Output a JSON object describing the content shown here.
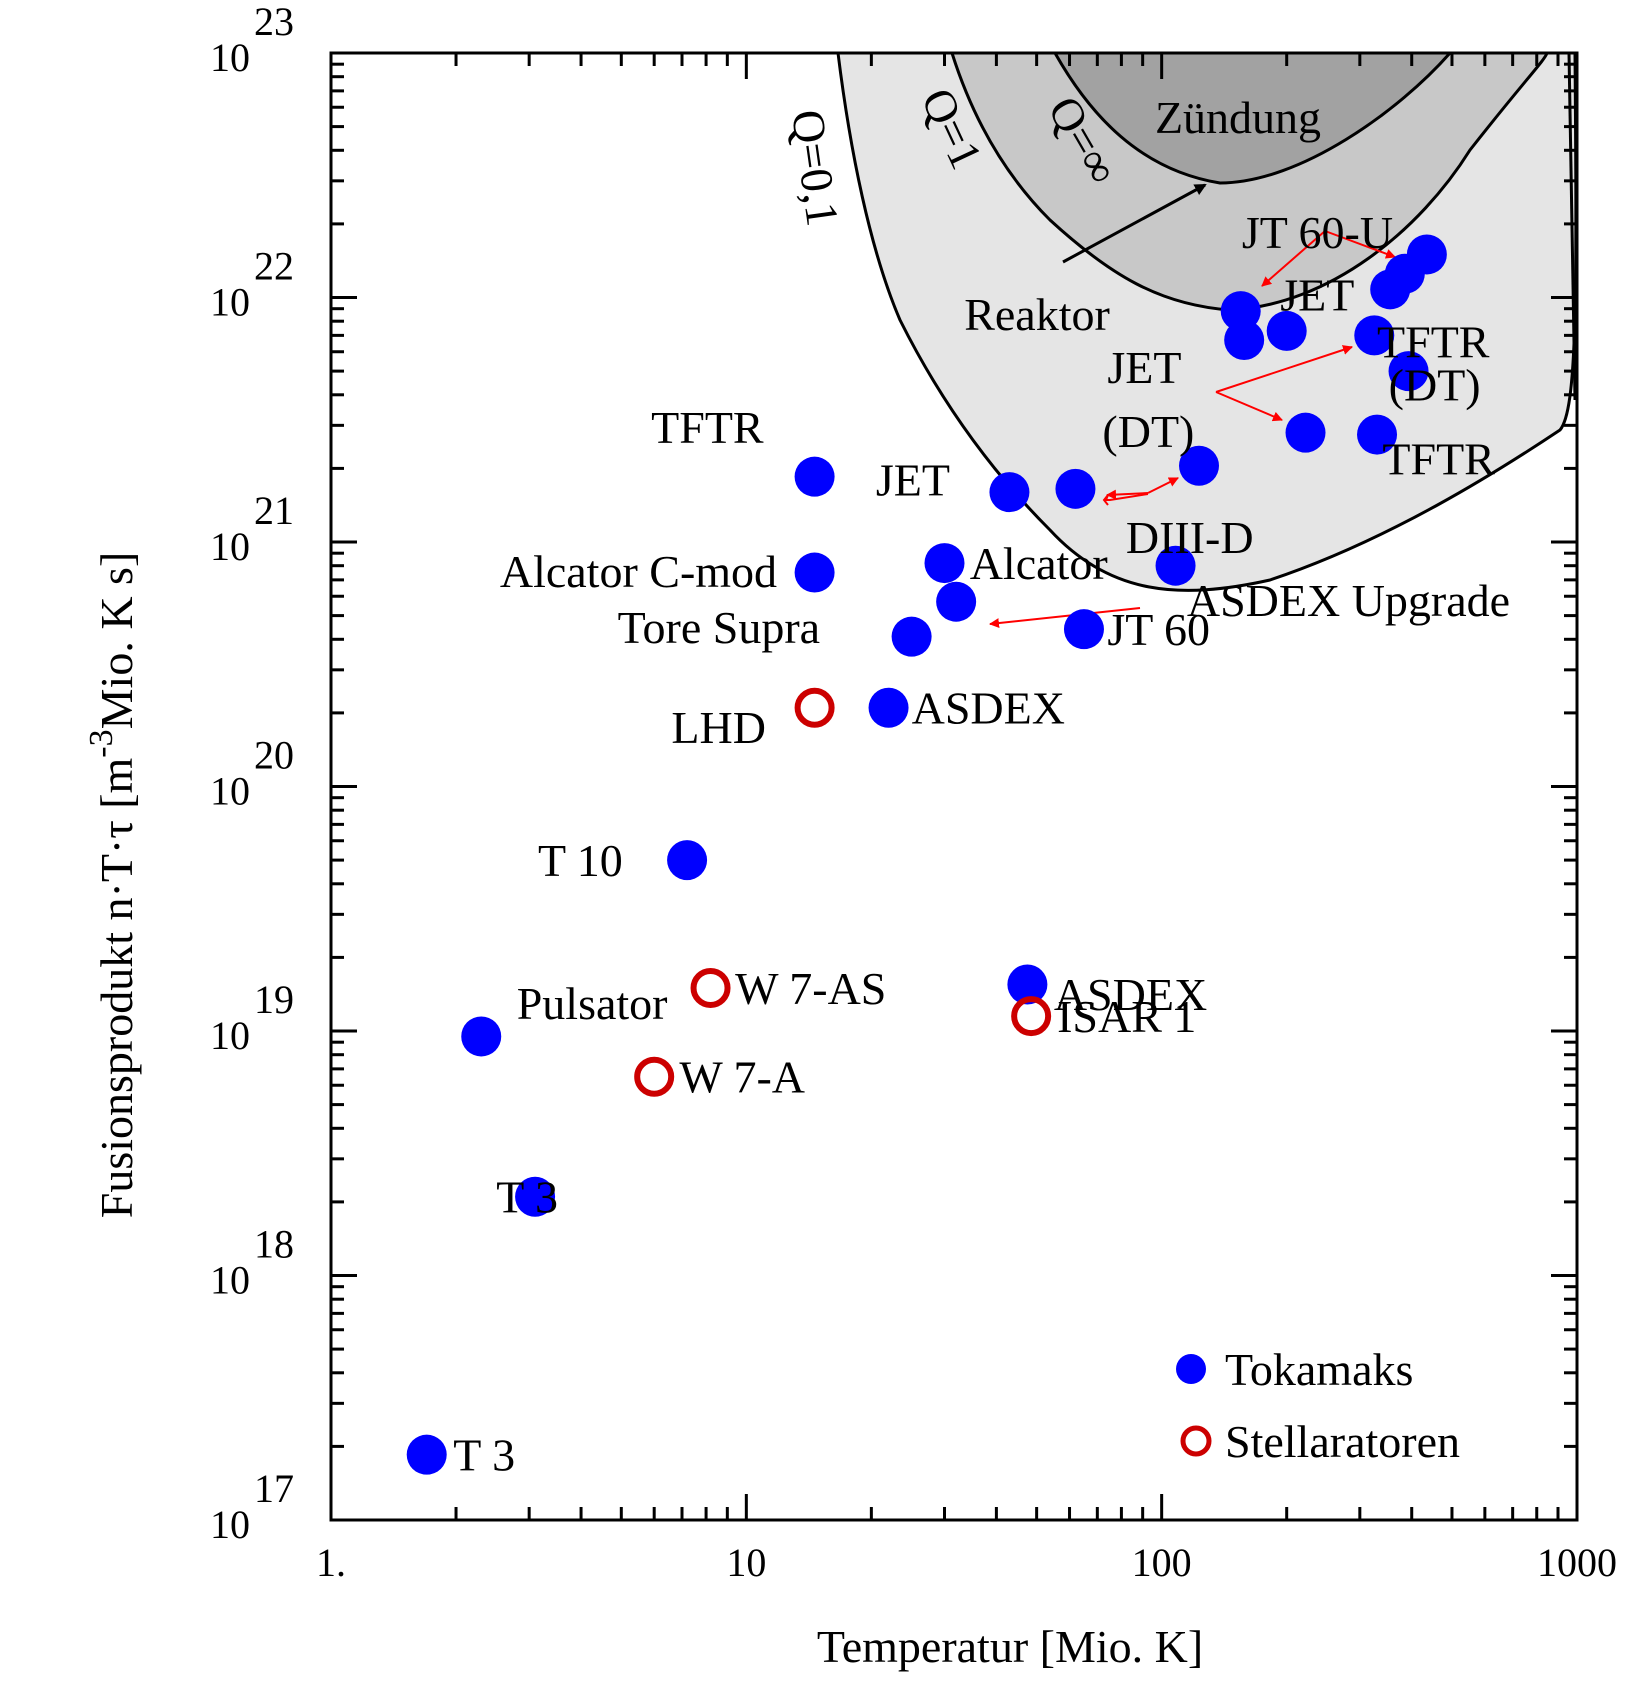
{
  "chart_data": {
    "type": "scatter",
    "title": "",
    "xlabel": "Temperatur [Mio. K]",
    "ylabel": {
      "main": "Fusionsprodukt   n·T·τ [m",
      "exp": "-3",
      "unit": "Mio. K s]"
    },
    "x_scale": "log",
    "y_scale": "log",
    "xlim": [
      1,
      1000
    ],
    "ylim": [
      1e+17,
      1e+23
    ],
    "x_ticks": [
      {
        "value": 1,
        "label": "1."
      },
      {
        "value": 10,
        "label": "10"
      },
      {
        "value": 100,
        "label": "100"
      },
      {
        "value": 1000,
        "label": "1000"
      }
    ],
    "y_ticks": [
      {
        "value": 17,
        "base": "10",
        "exp": "17"
      },
      {
        "value": 18,
        "base": "10",
        "exp": "18"
      },
      {
        "value": 19,
        "base": "10",
        "exp": "19"
      },
      {
        "value": 20,
        "base": "10",
        "exp": "20"
      },
      {
        "value": 21,
        "base": "10",
        "exp": "21"
      },
      {
        "value": 22,
        "base": "10",
        "exp": "22"
      },
      {
        "value": 23,
        "base": "10",
        "exp": "23"
      }
    ],
    "series": [
      {
        "name": "Tokamaks",
        "marker": "filled",
        "color": "#0000ff",
        "points": [
          {
            "x": 1.7,
            "y": 1.85e+17
          },
          {
            "x": 3.1,
            "y": 2.1e+18
          },
          {
            "x": 2.3,
            "y": 9.5e+18
          },
          {
            "x": 7.2,
            "y": 5e+19
          },
          {
            "x": 14.6,
            "y": 1.85e+21
          },
          {
            "x": 14.6,
            "y": 7.5e+20
          },
          {
            "x": 22,
            "y": 2.1e+20
          },
          {
            "x": 25,
            "y": 4.1e+20
          },
          {
            "x": 30,
            "y": 8.2e+20
          },
          {
            "x": 32,
            "y": 5.7e+20
          },
          {
            "x": 43,
            "y": 1.6e+21
          },
          {
            "x": 47.5,
            "y": 1.55e+19
          },
          {
            "x": 62,
            "y": 1.65e+21
          },
          {
            "x": 65,
            "y": 4.4e+20
          },
          {
            "x": 108,
            "y": 8e+20
          },
          {
            "x": 123,
            "y": 2.05e+21
          },
          {
            "x": 155,
            "y": 8.8e+21
          },
          {
            "x": 158,
            "y": 6.7e+21
          },
          {
            "x": 200,
            "y": 7.3e+21
          },
          {
            "x": 222,
            "y": 2.8e+21
          },
          {
            "x": 325,
            "y": 7e+21
          },
          {
            "x": 330,
            "y": 2.75e+21
          },
          {
            "x": 355,
            "y": 1.08e+22
          },
          {
            "x": 385,
            "y": 1.25e+22
          },
          {
            "x": 393,
            "y": 5e+21
          },
          {
            "x": 435,
            "y": 1.5e+22
          }
        ]
      },
      {
        "name": "Stellaratoren",
        "marker": "open",
        "color": "#cc0000",
        "points": [
          {
            "x": 6.0,
            "y": 6.5e+18
          },
          {
            "x": 8.2,
            "y": 1.5e+19
          },
          {
            "x": 14.6,
            "y": 2.1e+20
          },
          {
            "x": 48.5,
            "y": 1.15e+19
          }
        ]
      }
    ],
    "point_labels": [
      {
        "text": "T 3",
        "x": 1.97,
        "y": 1.85e+17,
        "anchor": "start"
      },
      {
        "text": "T 3",
        "x": 2.5,
        "y": 2.1e+18,
        "anchor": "start"
      },
      {
        "text": "Pulsator",
        "x": 2.8,
        "y": 1.3e+19,
        "anchor": "start"
      },
      {
        "text": "W 7-A",
        "x": 6.9,
        "y": 6.5e+18,
        "anchor": "start"
      },
      {
        "text": "W 7-AS",
        "x": 9.4,
        "y": 1.5e+19,
        "anchor": "start"
      },
      {
        "text": "T 10",
        "x": 3.15,
        "y": 5e+19,
        "anchor": "start"
      },
      {
        "text": "ISAR 1",
        "x": 56,
        "y": 1.15e+19,
        "anchor": "start"
      },
      {
        "text": "ASDEX",
        "x": 55,
        "y": 1.42e+19,
        "anchor": "start"
      },
      {
        "text": "LHD",
        "x": 6.6,
        "y": 1.75e+20,
        "anchor": "start"
      },
      {
        "text": "ASDEX",
        "x": 25,
        "y": 2.1e+20,
        "anchor": "start"
      },
      {
        "text": "JT 60",
        "x": 74,
        "y": 4.4e+20,
        "anchor": "start"
      },
      {
        "text": "Tore Supra",
        "x": 4.9,
        "y": 4.5e+20,
        "anchor": "start"
      },
      {
        "text": "ASDEX Upgrade",
        "x": 115,
        "y": 5.8e+20,
        "anchor": "start"
      },
      {
        "text": "Alcator C-mod",
        "x": 2.55,
        "y": 7.6e+20,
        "anchor": "start"
      },
      {
        "text": "Alcator",
        "x": 34.5,
        "y": 8.2e+20,
        "anchor": "start"
      },
      {
        "text": "DIII-D",
        "x": 82,
        "y": 1.05e+21,
        "anchor": "start"
      },
      {
        "text": "JET",
        "x": 20.5,
        "y": 1.8e+21,
        "anchor": "start"
      },
      {
        "text": "TFTR",
        "x": 5.9,
        "y": 2.95e+21,
        "anchor": "start"
      },
      {
        "text": "JET",
        "x": 74,
        "y": 5.2e+21,
        "anchor": "start"
      },
      {
        "text": "(DT)",
        "x": 72,
        "y": 2.85e+21,
        "anchor": "start"
      },
      {
        "text": "TFTR",
        "x": 330,
        "y": 6.6e+21,
        "anchor": "start"
      },
      {
        "text": "(DT)",
        "x": 352,
        "y": 4.4e+21,
        "anchor": "start"
      },
      {
        "text": "TFTR",
        "x": 340,
        "y": 2.2e+21,
        "anchor": "start"
      },
      {
        "text": "JET",
        "x": 193,
        "y": 1.03e+22,
        "anchor": "start"
      },
      {
        "text": "JT 60-U",
        "x": 156,
        "y": 1.85e+22,
        "anchor": "start"
      }
    ],
    "region_labels": {
      "zuendung": "Zündung",
      "reaktor": "Reaktor",
      "q_inf": "Q=∞",
      "q_1": "Q=1",
      "q_01": "Q=0,1"
    },
    "legend": {
      "placement": "bottom-right",
      "tokamaks": "Tokamaks",
      "stellaratoren": "Stellaratoren"
    },
    "colors": {
      "tokamak": "#0000ff",
      "stellarator": "#cc0000",
      "arrow": "#ff0000",
      "region_light": "#e5e5e5",
      "region_mid": "#c8c8c8",
      "region_dark": "#a2a2a2"
    }
  }
}
